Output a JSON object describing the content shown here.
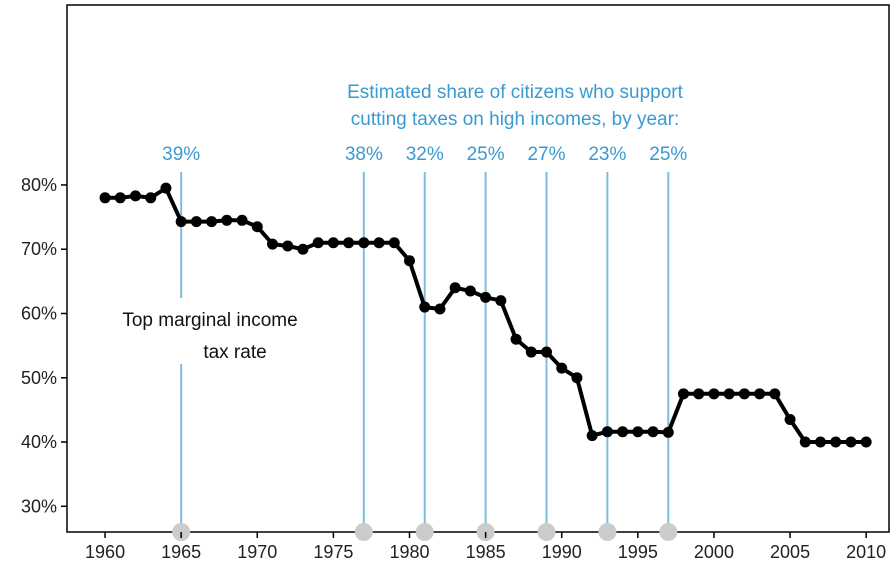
{
  "colors": {
    "line": "#000000",
    "annotation": "#3a9ad0",
    "marker": "#cccccc",
    "frame": "#000000"
  },
  "chart_data": {
    "type": "line",
    "title": "",
    "xlabel": "",
    "ylabel": "",
    "xlim": [
      1957.5,
      2011.5
    ],
    "ylim": [
      26,
      108
    ],
    "x_ticks": [
      1960,
      1965,
      1970,
      1975,
      1980,
      1985,
      1990,
      1995,
      2000,
      2005,
      2010
    ],
    "x_tick_labels": [
      "1960",
      "1965",
      "1970",
      "1975",
      "1980",
      "1985",
      "1990",
      "1995",
      "2000",
      "2005",
      "2010"
    ],
    "y_ticks": [
      30,
      40,
      50,
      60,
      70,
      80
    ],
    "y_tick_labels": [
      "30%",
      "40%",
      "50%",
      "60%",
      "70%",
      "80%"
    ],
    "grid": false,
    "series": [
      {
        "label_lines": [
          "Top marginal income",
          "tax rate"
        ],
        "x": [
          1960,
          1961,
          1962,
          1963,
          1964,
          1965,
          1966,
          1967,
          1968,
          1969,
          1970,
          1971,
          1972,
          1973,
          1974,
          1975,
          1976,
          1977,
          1978,
          1979,
          1980,
          1981,
          1982,
          1983,
          1984,
          1985,
          1986,
          1987,
          1988,
          1989,
          1990,
          1991,
          1992,
          1993,
          1994,
          1995,
          1996,
          1997,
          1998,
          1999,
          2000,
          2001,
          2002,
          2003,
          2004,
          2005,
          2006,
          2007,
          2008,
          2009,
          2010
        ],
        "values": [
          78,
          78,
          78.3,
          78,
          79.5,
          74.3,
          74.3,
          74.3,
          74.5,
          74.5,
          73.5,
          70.8,
          70.5,
          70,
          71,
          71,
          71,
          71,
          71,
          71,
          68.2,
          61,
          60.7,
          64,
          63.5,
          62.5,
          62,
          56,
          54,
          54,
          51.5,
          50,
          41,
          41.6,
          41.6,
          41.6,
          41.6,
          41.5,
          47.5,
          47.5,
          47.5,
          47.5,
          47.5,
          47.5,
          47.5,
          43.5,
          40,
          40,
          40,
          40,
          40
        ]
      }
    ],
    "annotation": {
      "title_lines": [
        "Estimated share of citizens who support",
        "cutting taxes on high incomes, by year:"
      ],
      "points": [
        {
          "year": 1965,
          "label": "39%"
        },
        {
          "year": 1977,
          "label": "38%"
        },
        {
          "year": 1981,
          "label": "32%"
        },
        {
          "year": 1985,
          "label": "25%"
        },
        {
          "year": 1989,
          "label": "27%"
        },
        {
          "year": 1993,
          "label": "23%"
        },
        {
          "year": 1997,
          "label": "25%"
        }
      ]
    }
  }
}
